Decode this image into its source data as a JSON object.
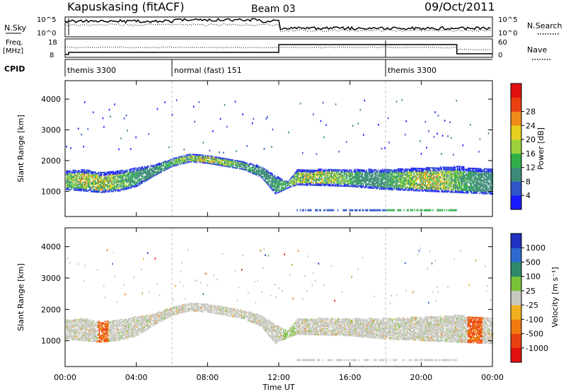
{
  "header": {
    "station": "Kapuskasing (fitACF)",
    "beam": "Beam 03",
    "date": "09/Oct/2011"
  },
  "top_panels": {
    "nsky_label": "N.Sky",
    "nsearch_label": "N.Search",
    "nsky_ticks": [
      "10^5",
      "10^0"
    ],
    "freq_label_1": "Freq.",
    "freq_label_2": "[MHz]",
    "freq_ticks": [
      "18",
      "8"
    ],
    "nave_label": "Nave",
    "nave_ticks": [
      "60",
      "0"
    ],
    "cpid_label": "CPID"
  },
  "cpid_segments": [
    {
      "label": "themis 3300",
      "start_hour": 0.0
    },
    {
      "label": "normal (fast) 151",
      "start_hour": 6.0
    },
    {
      "label": "themis 3300",
      "start_hour": 18.0
    }
  ],
  "power_panel": {
    "ylabel": "Slant Range [km]",
    "yticks": [
      "1000",
      "2000",
      "3000",
      "4000"
    ],
    "colorbar_label": "Power [dB]",
    "colorbar_ticks": [
      "4",
      "8",
      "12",
      "16",
      "20",
      "24",
      "28"
    ]
  },
  "velocity_panel": {
    "ylabel": "Slant Range [km]",
    "yticks": [
      "1000",
      "2000",
      "3000",
      "4000"
    ],
    "colorbar_label": "Velocity [m s⁻¹]",
    "colorbar_ticks": [
      "1000",
      "500",
      "100",
      "25",
      "-25",
      "-100",
      "-500",
      "-1000"
    ]
  },
  "xaxis": {
    "label": "Time UT",
    "ticks": [
      "00:00",
      "04:00",
      "08:00",
      "12:00",
      "16:00",
      "20:00",
      "00:00"
    ]
  },
  "chart_data": {
    "type": "heatmap",
    "x_range_hours": [
      0,
      24
    ],
    "y_range_km": [
      180,
      4600
    ],
    "power_colors": [
      "#1a1aff",
      "#2f54c8",
      "#3c8a78",
      "#2fae4a",
      "#9bd23a",
      "#e8d020",
      "#f08a18",
      "#e84010",
      "#e01010"
    ],
    "velocity_colors": [
      "#2030c0",
      "#2e6ad0",
      "#2e8a6a",
      "#7ac23a",
      "#c8c8c0",
      "#f0b020",
      "#f07a10",
      "#e84010",
      "#e01010"
    ],
    "echo_band_edges": [
      {
        "t": 0.0,
        "lo": 1050,
        "hi": 1650
      },
      {
        "t": 1.0,
        "lo": 1000,
        "hi": 1700
      },
      {
        "t": 2.0,
        "lo": 950,
        "hi": 1600
      },
      {
        "t": 3.0,
        "lo": 1000,
        "hi": 1650
      },
      {
        "t": 4.0,
        "lo": 1150,
        "hi": 1750
      },
      {
        "t": 5.0,
        "lo": 1500,
        "hi": 1850
      },
      {
        "t": 6.0,
        "lo": 1800,
        "hi": 2050
      },
      {
        "t": 7.0,
        "lo": 1950,
        "hi": 2200
      },
      {
        "t": 8.0,
        "lo": 1900,
        "hi": 2150
      },
      {
        "t": 9.0,
        "lo": 1800,
        "hi": 2050
      },
      {
        "t": 10.0,
        "lo": 1700,
        "hi": 1950
      },
      {
        "t": 11.0,
        "lo": 1450,
        "hi": 1800
      },
      {
        "t": 11.8,
        "lo": 900,
        "hi": 1500
      },
      {
        "t": 12.5,
        "lo": 1100,
        "hi": 1300
      },
      {
        "t": 13.0,
        "lo": 1200,
        "hi": 1700
      },
      {
        "t": 16.0,
        "lo": 1150,
        "hi": 1700
      },
      {
        "t": 18.0,
        "lo": 1050,
        "hi": 1700
      },
      {
        "t": 20.0,
        "lo": 1000,
        "hi": 1750
      },
      {
        "t": 22.0,
        "lo": 950,
        "hi": 1800
      },
      {
        "t": 24.0,
        "lo": 900,
        "hi": 1700
      }
    ]
  }
}
